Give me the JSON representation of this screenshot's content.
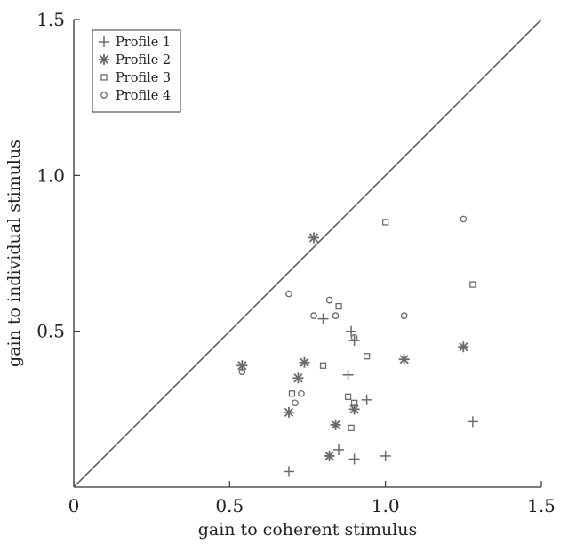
{
  "chart_data": {
    "type": "scatter",
    "title": "",
    "xlabel": "gain to coherent stimulus",
    "ylabel": "gain to individual stimulus",
    "xlim": [
      0,
      1.5
    ],
    "ylim": [
      0,
      1.5
    ],
    "xticks": [
      "0",
      "0.5",
      "1.0",
      "1.5"
    ],
    "yticks": [
      "0.5",
      "1.0",
      "1.5"
    ],
    "xtick_values": [
      0,
      0.5,
      1.0,
      1.5
    ],
    "ytick_values": [
      0.5,
      1.0,
      1.5
    ],
    "grid": false,
    "legend_position": "top-left",
    "reference_line": {
      "x": [
        0,
        1.5
      ],
      "y": [
        0,
        1.5
      ]
    },
    "series": [
      {
        "name": "Profile 1",
        "marker": "plus",
        "x": [
          0.69,
          0.8,
          0.89,
          0.9,
          0.88,
          0.94,
          1.28,
          0.85,
          0.9,
          1.0
        ],
        "y": [
          0.05,
          0.54,
          0.5,
          0.47,
          0.36,
          0.28,
          0.21,
          0.12,
          0.09,
          0.1
        ]
      },
      {
        "name": "Profile 2",
        "marker": "asterisk",
        "x": [
          0.77,
          0.54,
          0.74,
          0.72,
          0.69,
          0.84,
          0.9,
          0.82,
          1.06,
          1.25
        ],
        "y": [
          0.8,
          0.39,
          0.4,
          0.35,
          0.24,
          0.2,
          0.25,
          0.1,
          0.41,
          0.45
        ]
      },
      {
        "name": "Profile 3",
        "marker": "square",
        "x": [
          1.0,
          1.28,
          0.85,
          0.94,
          0.8,
          0.7,
          0.88,
          0.9,
          0.89
        ],
        "y": [
          0.85,
          0.65,
          0.58,
          0.42,
          0.39,
          0.3,
          0.29,
          0.27,
          0.19
        ]
      },
      {
        "name": "Profile 4",
        "marker": "circle",
        "x": [
          1.25,
          0.69,
          0.82,
          0.77,
          0.84,
          0.9,
          1.06,
          0.54,
          0.73,
          0.71
        ],
        "y": [
          0.86,
          0.62,
          0.6,
          0.55,
          0.55,
          0.48,
          0.55,
          0.37,
          0.3,
          0.27
        ]
      }
    ]
  },
  "colors": {
    "marker": "#6a6a6a",
    "axis": "#333333",
    "reference_line": "#555555"
  }
}
